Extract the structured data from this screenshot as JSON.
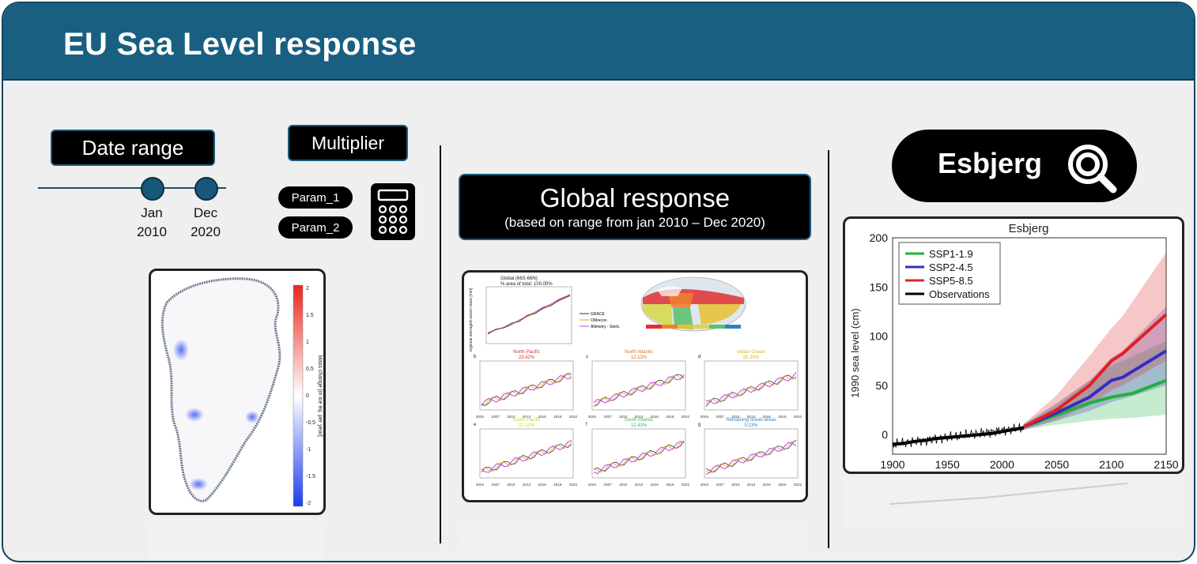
{
  "header": {
    "title": "EU Sea Level response"
  },
  "date_range": {
    "label": "Date range",
    "start": {
      "month": "Jan",
      "year": "2010"
    },
    "end": {
      "month": "Dec",
      "year": "2020"
    }
  },
  "multiplier": {
    "label": "Multiplier",
    "params": [
      "Param_1",
      "Param_2"
    ],
    "calculator_icon": "calculator-icon"
  },
  "global": {
    "title": "Global response",
    "subtitle": "(based on range from jan 2010 – Dec 2020)",
    "panel_title": "Global (66S-66N)",
    "panel_subtitle": "% area of total: 100.00%",
    "ylabel": "regional averaged ocean mass [mm]",
    "legend": [
      "GRACE",
      "OMrecon",
      "Altimetry - Steric"
    ],
    "regions": [
      {
        "letter": "b",
        "name": "North Pacific",
        "pct": "23.42%",
        "color": "#e03030"
      },
      {
        "letter": "c",
        "name": "North Atlantic",
        "pct": "12.13%",
        "color": "#e07020"
      },
      {
        "letter": "d",
        "name": "Indian Ocean",
        "pct": "20.35%",
        "color": "#e0b020"
      },
      {
        "letter": "e",
        "name": "South Pacific",
        "pct": "21.10%",
        "color": "#c8d040"
      },
      {
        "letter": "f",
        "name": "South Atlantic",
        "pct": "12.43%",
        "color": "#40b060"
      },
      {
        "letter": "g",
        "name": "Remaining ocean areas",
        "pct": "0.23%",
        "color": "#3080c0"
      }
    ],
    "x_ticks": [
      "2004",
      "2007",
      "2010",
      "2013",
      "2016",
      "2019",
      "2022"
    ]
  },
  "greenland_map": {
    "colorbar_ticks": [
      "2",
      "1.5",
      "1",
      "0.5",
      "0",
      "-0.5",
      "-1",
      "-1.5",
      "-2"
    ],
    "colorbar_label": "Mass change [m ice eq. per year]"
  },
  "location": {
    "name": "Esbjerg",
    "search_icon": "search-icon"
  },
  "chart_data": {
    "type": "line",
    "title": "Esbjerg",
    "xlabel": "",
    "ylabel": "1990 sea level (cm)",
    "xlim": [
      1900,
      2150
    ],
    "ylim": [
      -20,
      200
    ],
    "x_ticks": [
      1900,
      1950,
      2000,
      2050,
      2100,
      2150
    ],
    "y_ticks": [
      0,
      50,
      100,
      150,
      200
    ],
    "legend_position": "top-left",
    "series": [
      {
        "name": "SSP1-1.9",
        "color": "#20b040",
        "x": [
          2020,
          2050,
          2080,
          2100,
          2120,
          2150
        ],
        "y": [
          8,
          20,
          32,
          38,
          42,
          55
        ],
        "band_low": [
          5,
          10,
          14,
          16,
          17,
          20
        ],
        "band_high": [
          10,
          30,
          55,
          70,
          80,
          95
        ]
      },
      {
        "name": "SSP2-4.5",
        "color": "#3030c0",
        "x": [
          2020,
          2050,
          2080,
          2100,
          2110,
          2150
        ],
        "y": [
          8,
          22,
          38,
          55,
          58,
          85
        ],
        "band_low": [
          5,
          14,
          24,
          33,
          36,
          50
        ],
        "band_high": [
          11,
          32,
          55,
          78,
          85,
          130
        ]
      },
      {
        "name": "SSP5-8.5",
        "color": "#e02020",
        "x": [
          2020,
          2050,
          2080,
          2100,
          2110,
          2150
        ],
        "y": [
          8,
          25,
          50,
          75,
          82,
          122
        ],
        "band_low": [
          5,
          15,
          30,
          45,
          50,
          75
        ],
        "band_high": [
          11,
          40,
          80,
          108,
          120,
          185
        ]
      },
      {
        "name": "Observations",
        "color": "#000000",
        "x": [
          1900,
          1910,
          1920,
          1930,
          1940,
          1950,
          1960,
          1970,
          1980,
          1990,
          2000,
          2010,
          2020
        ],
        "y": [
          -10,
          -9,
          -7,
          -6,
          -4,
          -3,
          -2,
          -1,
          0,
          1,
          3,
          5,
          7
        ]
      }
    ]
  }
}
